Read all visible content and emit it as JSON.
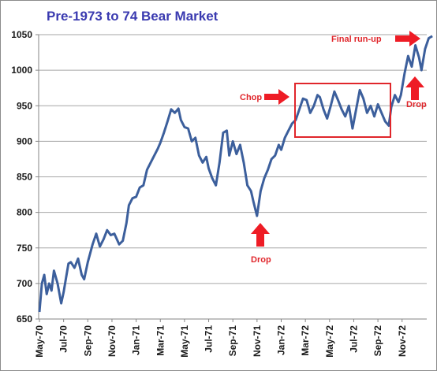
{
  "chart_data": {
    "type": "line",
    "title": "Pre-1973 to 74 Bear Market",
    "xlabel": "",
    "ylabel": "",
    "ylim": [
      650,
      1050
    ],
    "yticks": [
      650,
      700,
      750,
      800,
      850,
      900,
      950,
      1000,
      1050
    ],
    "xticks": [
      "May-70",
      "Jul-70",
      "Sep-70",
      "Nov-70",
      "Jan-71",
      "Mar-71",
      "May-71",
      "Jul-71",
      "Sep-71",
      "Nov-71",
      "Jan-72",
      "Mar-72",
      "May-72",
      "Jul-72",
      "Sep-72",
      "Nov-72"
    ],
    "grid": "horizontal",
    "series": [
      {
        "color": "#3c5f9c",
        "points": [
          [
            0,
            660
          ],
          [
            0.1,
            700
          ],
          [
            0.2,
            712
          ],
          [
            0.3,
            685
          ],
          [
            0.4,
            700
          ],
          [
            0.5,
            690
          ],
          [
            0.6,
            718
          ],
          [
            0.75,
            700
          ],
          [
            0.9,
            672
          ],
          [
            1.0,
            688
          ],
          [
            1.1,
            708
          ],
          [
            1.2,
            728
          ],
          [
            1.3,
            730
          ],
          [
            1.45,
            722
          ],
          [
            1.6,
            735
          ],
          [
            1.75,
            712
          ],
          [
            1.85,
            706
          ],
          [
            2.0,
            730
          ],
          [
            2.2,
            755
          ],
          [
            2.35,
            770
          ],
          [
            2.5,
            752
          ],
          [
            2.65,
            762
          ],
          [
            2.8,
            775
          ],
          [
            2.95,
            768
          ],
          [
            3.1,
            770
          ],
          [
            3.3,
            755
          ],
          [
            3.45,
            760
          ],
          [
            3.6,
            785
          ],
          [
            3.7,
            810
          ],
          [
            3.85,
            820
          ],
          [
            4.0,
            822
          ],
          [
            4.15,
            835
          ],
          [
            4.3,
            838
          ],
          [
            4.45,
            860
          ],
          [
            4.6,
            870
          ],
          [
            4.75,
            880
          ],
          [
            4.9,
            890
          ],
          [
            5.0,
            898
          ],
          [
            5.15,
            912
          ],
          [
            5.3,
            928
          ],
          [
            5.45,
            945
          ],
          [
            5.6,
            940
          ],
          [
            5.75,
            946
          ],
          [
            5.85,
            930
          ],
          [
            6.0,
            920
          ],
          [
            6.15,
            918
          ],
          [
            6.3,
            900
          ],
          [
            6.45,
            905
          ],
          [
            6.6,
            880
          ],
          [
            6.75,
            870
          ],
          [
            6.9,
            878
          ],
          [
            7.0,
            862
          ],
          [
            7.15,
            848
          ],
          [
            7.3,
            838
          ],
          [
            7.45,
            870
          ],
          [
            7.6,
            912
          ],
          [
            7.75,
            915
          ],
          [
            7.85,
            880
          ],
          [
            8.0,
            900
          ],
          [
            8.15,
            882
          ],
          [
            8.3,
            895
          ],
          [
            8.45,
            870
          ],
          [
            8.6,
            838
          ],
          [
            8.75,
            830
          ],
          [
            8.85,
            815
          ],
          [
            9.0,
            795
          ],
          [
            9.15,
            830
          ],
          [
            9.3,
            848
          ],
          [
            9.45,
            860
          ],
          [
            9.6,
            875
          ],
          [
            9.75,
            880
          ],
          [
            9.9,
            895
          ],
          [
            10.0,
            888
          ],
          [
            10.15,
            905
          ],
          [
            10.3,
            915
          ],
          [
            10.45,
            925
          ],
          [
            10.6,
            930
          ],
          [
            10.75,
            945
          ],
          [
            10.9,
            960
          ],
          [
            11.05,
            958
          ],
          [
            11.2,
            940
          ],
          [
            11.35,
            950
          ],
          [
            11.5,
            965
          ],
          [
            11.6,
            962
          ],
          [
            11.75,
            945
          ],
          [
            11.9,
            932
          ],
          [
            12.05,
            950
          ],
          [
            12.2,
            970
          ],
          [
            12.35,
            958
          ],
          [
            12.5,
            945
          ],
          [
            12.65,
            935
          ],
          [
            12.8,
            950
          ],
          [
            12.95,
            918
          ],
          [
            13.1,
            945
          ],
          [
            13.25,
            972
          ],
          [
            13.4,
            960
          ],
          [
            13.55,
            940
          ],
          [
            13.7,
            950
          ],
          [
            13.85,
            935
          ],
          [
            14.0,
            952
          ],
          [
            14.15,
            940
          ],
          [
            14.3,
            928
          ],
          [
            14.45,
            922
          ],
          [
            14.55,
            948
          ],
          [
            14.7,
            965
          ],
          [
            14.85,
            955
          ],
          [
            14.95,
            965
          ],
          [
            15.1,
            995
          ],
          [
            15.25,
            1020
          ],
          [
            15.4,
            1005
          ],
          [
            15.55,
            1035
          ],
          [
            15.7,
            1018
          ],
          [
            15.8,
            1000
          ],
          [
            15.95,
            1030
          ],
          [
            16.1,
            1045
          ],
          [
            16.25,
            1048
          ]
        ]
      }
    ],
    "annotations": [
      {
        "text": "Final run-up"
      },
      {
        "text": "Chop"
      },
      {
        "text": "Drop"
      },
      {
        "text": "Drop"
      }
    ]
  }
}
